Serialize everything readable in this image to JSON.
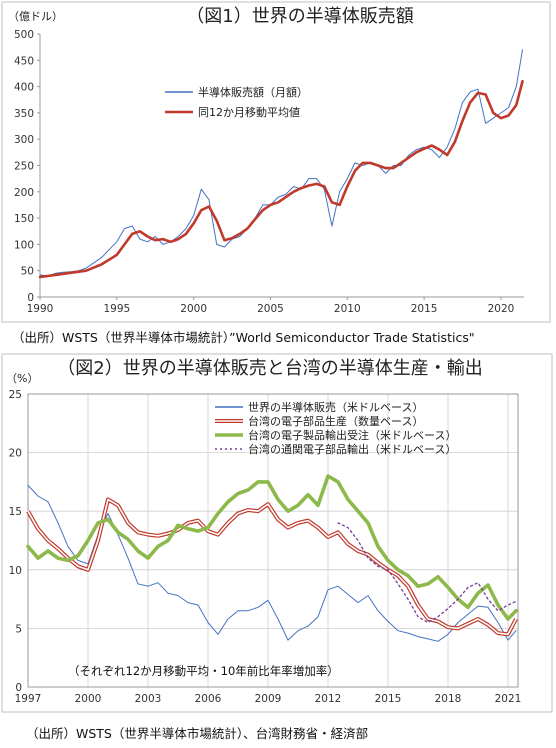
{
  "chart_data": [
    {
      "type": "line",
      "title": "（図1）世界の半導体販売額",
      "ylabel": "（億ドル）",
      "source": "（出所）WSTS（世界半導体市場統計）”World Semiconductor Trade Statistics\"",
      "xlim": [
        1990,
        2021.5
      ],
      "ylim": [
        0,
        500
      ],
      "x_ticks": [
        "1990",
        "1995",
        "2000",
        "2005",
        "2010",
        "2015",
        "2020"
      ],
      "y_ticks": [
        "0",
        "50",
        "100",
        "150",
        "200",
        "250",
        "300",
        "350",
        "400",
        "450",
        "500"
      ],
      "legend_position": "top-center",
      "grid": false,
      "series": [
        {
          "name": "半導体販売額（月額）",
          "color": "#4472C4",
          "x": [
            1990.0,
            1990.5,
            1991.0,
            1991.5,
            1992.0,
            1992.5,
            1993.0,
            1993.5,
            1994.0,
            1994.5,
            1995.0,
            1995.5,
            1996.0,
            1996.5,
            1997.0,
            1997.5,
            1998.0,
            1998.5,
            1999.0,
            1999.5,
            2000.0,
            2000.5,
            2001.0,
            2001.5,
            2002.0,
            2002.5,
            2003.0,
            2003.5,
            2004.0,
            2004.5,
            2005.0,
            2005.5,
            2006.0,
            2006.5,
            2007.0,
            2007.5,
            2008.0,
            2008.5,
            2009.0,
            2009.5,
            2010.0,
            2010.5,
            2011.0,
            2011.5,
            2012.0,
            2012.5,
            2013.0,
            2013.5,
            2014.0,
            2014.5,
            2015.0,
            2015.5,
            2016.0,
            2016.5,
            2017.0,
            2017.5,
            2018.0,
            2018.5,
            2019.0,
            2019.5,
            2020.0,
            2020.5,
            2021.0,
            2021.4
          ],
          "values": [
            42,
            40,
            45,
            47,
            48,
            50,
            55,
            65,
            75,
            90,
            105,
            130,
            135,
            110,
            105,
            115,
            100,
            105,
            115,
            130,
            155,
            205,
            185,
            100,
            95,
            110,
            115,
            130,
            150,
            175,
            175,
            190,
            195,
            210,
            205,
            225,
            225,
            205,
            135,
            200,
            225,
            255,
            250,
            255,
            250,
            235,
            250,
            250,
            270,
            280,
            285,
            280,
            265,
            285,
            320,
            370,
            390,
            395,
            330,
            340,
            350,
            360,
            400,
            470
          ]
        },
        {
          "name": "同12か月移動平均値",
          "color": "#C0392B",
          "x": [
            1990.0,
            1991.0,
            1992.0,
            1993.0,
            1994.0,
            1995.0,
            1995.5,
            1996.0,
            1996.5,
            1997.0,
            1997.5,
            1998.0,
            1998.5,
            1999.0,
            1999.5,
            2000.0,
            2000.5,
            2001.0,
            2001.5,
            2002.0,
            2002.5,
            2003.0,
            2003.5,
            2004.0,
            2004.5,
            2005.0,
            2005.5,
            2006.0,
            2006.5,
            2007.0,
            2007.5,
            2008.0,
            2008.5,
            2009.0,
            2009.5,
            2010.0,
            2010.5,
            2011.0,
            2011.5,
            2012.0,
            2012.5,
            2013.0,
            2013.5,
            2014.0,
            2014.5,
            2015.0,
            2015.5,
            2016.0,
            2016.5,
            2017.0,
            2017.5,
            2018.0,
            2018.5,
            2019.0,
            2019.5,
            2020.0,
            2020.5,
            2021.0,
            2021.4
          ],
          "values": [
            38,
            42,
            46,
            50,
            62,
            80,
            100,
            120,
            125,
            115,
            108,
            110,
            105,
            110,
            120,
            140,
            165,
            172,
            145,
            108,
            112,
            120,
            130,
            148,
            165,
            175,
            180,
            190,
            200,
            207,
            212,
            215,
            210,
            180,
            175,
            210,
            240,
            255,
            255,
            250,
            245,
            245,
            255,
            265,
            275,
            282,
            288,
            280,
            270,
            295,
            335,
            370,
            388,
            385,
            350,
            340,
            345,
            365,
            410
          ]
        }
      ]
    },
    {
      "type": "line",
      "title": "（図2）世界の半導体販売と台湾の半導体生産・輸出",
      "ylabel": "（%）",
      "note": "（それぞれ12か月移動平均・10年前比年率増加率）",
      "source": "（出所）WSTS（世界半導体市場統計）、台湾財務省・経済部",
      "xlim": [
        1997,
        2021.5
      ],
      "ylim": [
        0,
        25
      ],
      "x_ticks": [
        "1997",
        "2000",
        "2003",
        "2006",
        "2009",
        "2012",
        "2015",
        "2018",
        "2021"
      ],
      "y_ticks": [
        "0",
        "5",
        "10",
        "15",
        "20",
        "25"
      ],
      "legend_position": "top-right",
      "grid": true,
      "series": [
        {
          "name": "世界の半導体販売（米ドルベース）",
          "color": "#4472C4",
          "x": [
            1997.0,
            1997.5,
            1998.0,
            1998.5,
            1999.0,
            1999.5,
            2000.0,
            2000.5,
            2001.0,
            2001.5,
            2002.0,
            2002.5,
            2003.0,
            2003.5,
            2004.0,
            2004.5,
            2005.0,
            2005.5,
            2006.0,
            2006.5,
            2007.0,
            2007.5,
            2008.0,
            2008.5,
            2009.0,
            2009.5,
            2010.0,
            2010.5,
            2011.0,
            2011.5,
            2012.0,
            2012.5,
            2013.0,
            2013.5,
            2014.0,
            2014.5,
            2015.0,
            2015.5,
            2016.0,
            2016.5,
            2017.0,
            2017.5,
            2018.0,
            2018.5,
            2019.0,
            2019.5,
            2020.0,
            2020.5,
            2021.0,
            2021.4
          ],
          "values": [
            17.2,
            16.3,
            15.8,
            14.0,
            12.0,
            10.8,
            10.5,
            13.0,
            14.8,
            13.0,
            11.0,
            8.8,
            8.6,
            8.9,
            8.0,
            7.8,
            7.2,
            7.0,
            5.5,
            4.5,
            5.8,
            6.5,
            6.5,
            6.8,
            7.4,
            5.8,
            4.0,
            4.8,
            5.2,
            6.0,
            8.3,
            8.6,
            7.9,
            7.2,
            7.8,
            6.5,
            5.6,
            4.8,
            4.6,
            4.3,
            4.1,
            3.9,
            4.5,
            5.5,
            6.2,
            6.9,
            6.8,
            5.5,
            4.0,
            4.8
          ]
        },
        {
          "name": "台湾の電子部品生産（数量ベース）",
          "color": "#C0392B",
          "x": [
            1997.0,
            1997.5,
            1998.0,
            1998.5,
            1999.0,
            1999.5,
            2000.0,
            2000.5,
            2001.0,
            2001.5,
            2002.0,
            2002.5,
            2003.0,
            2003.5,
            2004.0,
            2004.5,
            2005.0,
            2005.5,
            2006.0,
            2006.5,
            2007.0,
            2007.5,
            2008.0,
            2008.5,
            2009.0,
            2009.5,
            2010.0,
            2010.5,
            2011.0,
            2011.5,
            2012.0,
            2012.5,
            2013.0,
            2013.5,
            2014.0,
            2014.5,
            2015.0,
            2015.5,
            2016.0,
            2016.5,
            2017.0,
            2017.5,
            2018.0,
            2018.5,
            2019.0,
            2019.5,
            2020.0,
            2020.5,
            2021.0,
            2021.4
          ],
          "values": [
            15.0,
            13.5,
            12.5,
            11.8,
            11.0,
            10.3,
            10.0,
            12.5,
            16.0,
            15.5,
            14.0,
            13.2,
            13.0,
            12.9,
            13.1,
            13.4,
            14.0,
            14.2,
            13.3,
            13.0,
            14.0,
            14.8,
            15.1,
            15.0,
            15.6,
            14.3,
            13.6,
            14.0,
            14.2,
            13.6,
            12.8,
            13.2,
            12.2,
            11.6,
            11.3,
            10.6,
            10.0,
            9.5,
            8.6,
            7.0,
            5.8,
            5.6,
            5.1,
            5.0,
            5.4,
            5.8,
            5.3,
            4.6,
            4.5,
            5.8
          ]
        },
        {
          "name": "台湾の電子製品輸出受注（米ドルベース）",
          "color": "#8DB84A",
          "x": [
            1997.0,
            1997.5,
            1998.0,
            1998.5,
            1999.0,
            1999.5,
            2000.0,
            2000.5,
            2001.0,
            2001.5,
            2002.0,
            2002.5,
            2003.0,
            2003.5,
            2004.0,
            2004.5,
            2005.0,
            2005.5,
            2006.0,
            2006.5,
            2007.0,
            2007.5,
            2008.0,
            2008.5,
            2009.0,
            2009.5,
            2010.0,
            2010.5,
            2011.0,
            2011.5,
            2012.0,
            2012.5,
            2013.0,
            2013.5,
            2014.0,
            2014.5,
            2015.0,
            2015.5,
            2016.0,
            2016.5,
            2017.0,
            2017.5,
            2018.0,
            2018.5,
            2019.0,
            2019.5,
            2020.0,
            2020.5,
            2021.0,
            2021.4
          ],
          "values": [
            12.0,
            11.0,
            11.6,
            11.0,
            10.8,
            11.2,
            12.5,
            14.0,
            14.3,
            13.2,
            12.6,
            11.6,
            11.0,
            12.0,
            12.5,
            13.8,
            13.5,
            13.3,
            13.6,
            14.8,
            15.8,
            16.5,
            16.8,
            17.5,
            17.5,
            16.0,
            15.0,
            15.5,
            16.4,
            15.5,
            18.0,
            17.5,
            16.0,
            15.0,
            14.0,
            12.0,
            10.8,
            10.0,
            9.5,
            8.6,
            8.8,
            9.4,
            8.5,
            7.5,
            6.8,
            8.0,
            8.7,
            7.0,
            5.8,
            6.5
          ]
        },
        {
          "name": "台湾の通関電子部品輸出（米ドルベース）",
          "color": "#7D3C98",
          "x": [
            2012.5,
            2013.0,
            2013.5,
            2014.0,
            2014.5,
            2015.0,
            2015.5,
            2016.0,
            2016.5,
            2017.0,
            2017.5,
            2018.0,
            2018.5,
            2019.0,
            2019.5,
            2020.0,
            2020.5,
            2021.0,
            2021.4
          ],
          "values": [
            14.0,
            13.6,
            12.5,
            11.0,
            10.3,
            10.0,
            8.8,
            7.5,
            6.0,
            5.5,
            6.0,
            6.7,
            7.5,
            8.5,
            8.9,
            7.5,
            6.5,
            7.0,
            7.3
          ]
        }
      ]
    }
  ]
}
